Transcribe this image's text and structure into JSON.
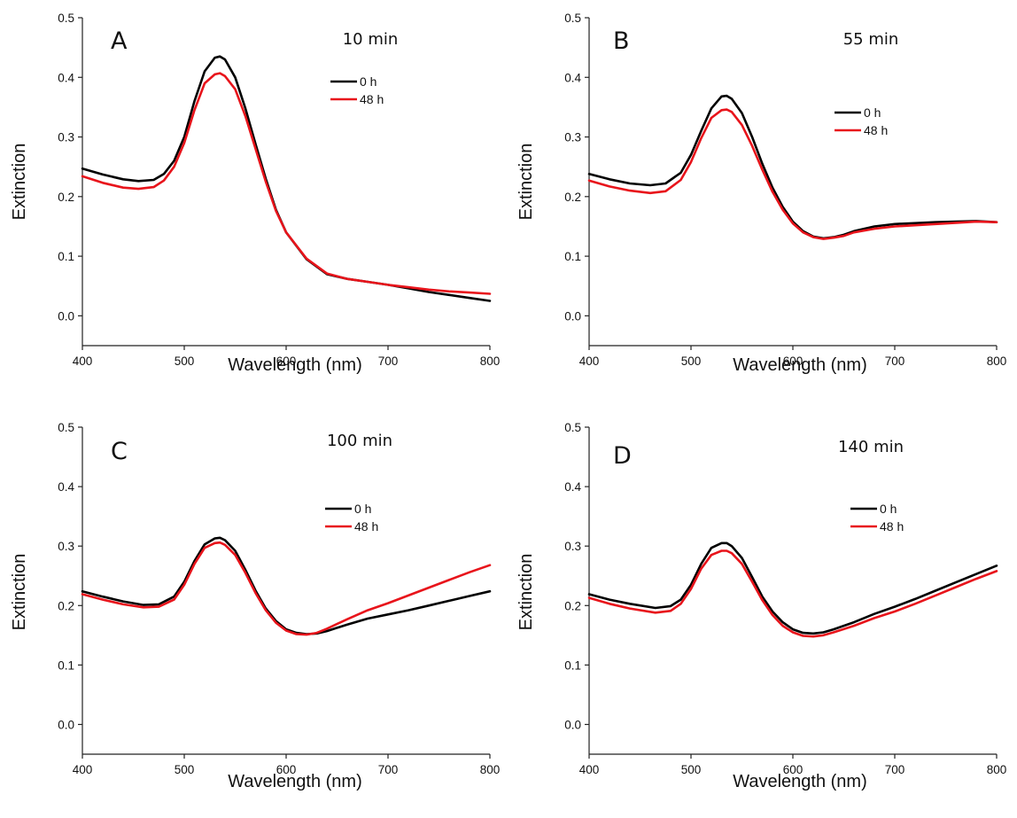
{
  "chart_data": [
    {
      "type": "line",
      "panel": "A",
      "annotation": "10 min",
      "xlabel": "Wavelength (nm)",
      "ylabel": "Extinction",
      "xlim": [
        400,
        800
      ],
      "ylim": [
        -0.05,
        0.5
      ],
      "xticks": [
        "400",
        "500",
        "600",
        "700",
        "800"
      ],
      "yticks": [
        "0.0",
        "0.1",
        "0.2",
        "0.3",
        "0.4",
        "0.5"
      ],
      "legend_position": "upper-right",
      "colors": {
        "0 h": "#000000",
        "48 h": "#e8141b"
      },
      "series": [
        {
          "name": "0 h",
          "x": [
            400,
            420,
            440,
            455,
            470,
            480,
            490,
            500,
            510,
            520,
            530,
            535,
            540,
            550,
            560,
            570,
            580,
            590,
            600,
            620,
            640,
            660,
            680,
            700,
            720,
            740,
            760,
            780,
            800
          ],
          "values": [
            0.247,
            0.237,
            0.229,
            0.226,
            0.228,
            0.238,
            0.26,
            0.3,
            0.36,
            0.41,
            0.433,
            0.435,
            0.43,
            0.4,
            0.348,
            0.288,
            0.23,
            0.178,
            0.14,
            0.095,
            0.07,
            0.062,
            0.057,
            0.052,
            0.046,
            0.04,
            0.035,
            0.03,
            0.025
          ]
        },
        {
          "name": "48 h",
          "x": [
            400,
            420,
            440,
            455,
            470,
            480,
            490,
            500,
            510,
            520,
            530,
            535,
            540,
            550,
            560,
            570,
            580,
            590,
            600,
            620,
            640,
            660,
            680,
            700,
            720,
            740,
            760,
            780,
            800
          ],
          "values": [
            0.234,
            0.223,
            0.215,
            0.213,
            0.216,
            0.227,
            0.25,
            0.29,
            0.345,
            0.39,
            0.405,
            0.407,
            0.402,
            0.38,
            0.335,
            0.28,
            0.225,
            0.176,
            0.14,
            0.096,
            0.071,
            0.062,
            0.057,
            0.052,
            0.048,
            0.044,
            0.041,
            0.039,
            0.037
          ]
        }
      ]
    },
    {
      "type": "line",
      "panel": "B",
      "annotation": "55 min",
      "xlabel": "Wavelength (nm)",
      "ylabel": "Extinction",
      "xlim": [
        400,
        800
      ],
      "ylim": [
        -0.05,
        0.5
      ],
      "xticks": [
        "400",
        "500",
        "600",
        "700",
        "800"
      ],
      "yticks": [
        "0.0",
        "0.1",
        "0.2",
        "0.3",
        "0.4",
        "0.5"
      ],
      "legend_position": "upper-right",
      "colors": {
        "0 h": "#000000",
        "48 h": "#e8141b"
      },
      "series": [
        {
          "name": "0 h",
          "x": [
            400,
            420,
            440,
            460,
            475,
            490,
            500,
            510,
            520,
            530,
            535,
            540,
            550,
            560,
            570,
            580,
            590,
            600,
            610,
            620,
            630,
            640,
            650,
            660,
            680,
            700,
            740,
            780,
            800
          ],
          "values": [
            0.238,
            0.229,
            0.222,
            0.219,
            0.222,
            0.24,
            0.27,
            0.31,
            0.348,
            0.368,
            0.369,
            0.364,
            0.34,
            0.3,
            0.255,
            0.215,
            0.183,
            0.158,
            0.142,
            0.133,
            0.13,
            0.132,
            0.136,
            0.142,
            0.15,
            0.154,
            0.157,
            0.159,
            0.157
          ]
        },
        {
          "name": "48 h",
          "x": [
            400,
            420,
            440,
            460,
            475,
            490,
            500,
            510,
            520,
            530,
            535,
            540,
            550,
            560,
            570,
            580,
            590,
            600,
            610,
            620,
            630,
            640,
            650,
            660,
            680,
            700,
            740,
            780,
            800
          ],
          "values": [
            0.227,
            0.217,
            0.21,
            0.206,
            0.209,
            0.228,
            0.258,
            0.298,
            0.332,
            0.345,
            0.346,
            0.342,
            0.32,
            0.285,
            0.245,
            0.208,
            0.178,
            0.155,
            0.14,
            0.132,
            0.129,
            0.131,
            0.134,
            0.14,
            0.146,
            0.15,
            0.154,
            0.158,
            0.157
          ]
        }
      ]
    },
    {
      "type": "line",
      "panel": "C",
      "annotation": "100 min",
      "xlabel": "Wavelength (nm)",
      "ylabel": "Extinction",
      "xlim": [
        400,
        800
      ],
      "ylim": [
        -0.05,
        0.5
      ],
      "xticks": [
        "400",
        "500",
        "600",
        "700",
        "800"
      ],
      "yticks": [
        "0.0",
        "0.1",
        "0.2",
        "0.3",
        "0.4",
        "0.5"
      ],
      "legend_position": "upper-right",
      "colors": {
        "0 h": "#000000",
        "48 h": "#e8141b"
      },
      "series": [
        {
          "name": "0 h",
          "x": [
            400,
            420,
            440,
            460,
            475,
            490,
            500,
            510,
            520,
            530,
            535,
            540,
            550,
            560,
            570,
            580,
            590,
            600,
            610,
            620,
            630,
            640,
            660,
            680,
            700,
            720,
            740,
            760,
            780,
            800
          ],
          "values": [
            0.224,
            0.215,
            0.207,
            0.201,
            0.202,
            0.215,
            0.24,
            0.275,
            0.303,
            0.313,
            0.314,
            0.31,
            0.292,
            0.26,
            0.225,
            0.195,
            0.174,
            0.16,
            0.154,
            0.152,
            0.153,
            0.157,
            0.168,
            0.178,
            0.185,
            0.192,
            0.2,
            0.208,
            0.216,
            0.224
          ]
        },
        {
          "name": "48 h",
          "x": [
            400,
            420,
            440,
            460,
            475,
            490,
            500,
            510,
            520,
            530,
            535,
            540,
            550,
            560,
            570,
            580,
            590,
            600,
            610,
            620,
            630,
            640,
            660,
            680,
            700,
            720,
            740,
            760,
            780,
            800
          ],
          "values": [
            0.219,
            0.21,
            0.202,
            0.197,
            0.198,
            0.21,
            0.235,
            0.27,
            0.297,
            0.305,
            0.306,
            0.302,
            0.285,
            0.255,
            0.221,
            0.192,
            0.171,
            0.158,
            0.152,
            0.151,
            0.154,
            0.161,
            0.177,
            0.192,
            0.204,
            0.217,
            0.23,
            0.243,
            0.256,
            0.268
          ]
        }
      ]
    },
    {
      "type": "line",
      "panel": "D",
      "annotation": "140 min",
      "xlabel": "Wavelength (nm)",
      "ylabel": "Extinction",
      "xlim": [
        400,
        800
      ],
      "ylim": [
        -0.05,
        0.5
      ],
      "xticks": [
        "400",
        "500",
        "600",
        "700",
        "800"
      ],
      "yticks": [
        "0.0",
        "0.1",
        "0.2",
        "0.3",
        "0.4",
        "0.5"
      ],
      "legend_position": "upper-right",
      "colors": {
        "0 h": "#000000",
        "48 h": "#e8141b"
      },
      "series": [
        {
          "name": "0 h",
          "x": [
            400,
            420,
            440,
            465,
            480,
            490,
            500,
            510,
            520,
            530,
            535,
            540,
            550,
            560,
            570,
            580,
            590,
            600,
            610,
            620,
            630,
            640,
            660,
            680,
            700,
            720,
            740,
            760,
            780,
            800
          ],
          "values": [
            0.219,
            0.21,
            0.203,
            0.196,
            0.199,
            0.21,
            0.235,
            0.27,
            0.297,
            0.305,
            0.305,
            0.3,
            0.28,
            0.248,
            0.215,
            0.19,
            0.172,
            0.16,
            0.154,
            0.153,
            0.155,
            0.16,
            0.172,
            0.186,
            0.198,
            0.211,
            0.225,
            0.239,
            0.253,
            0.267
          ]
        },
        {
          "name": "48 h",
          "x": [
            400,
            420,
            440,
            465,
            480,
            490,
            500,
            510,
            520,
            530,
            535,
            540,
            550,
            560,
            570,
            580,
            590,
            600,
            610,
            620,
            630,
            640,
            660,
            680,
            700,
            720,
            740,
            760,
            780,
            800
          ],
          "values": [
            0.213,
            0.203,
            0.195,
            0.188,
            0.191,
            0.203,
            0.228,
            0.262,
            0.285,
            0.292,
            0.292,
            0.288,
            0.27,
            0.24,
            0.209,
            0.184,
            0.166,
            0.155,
            0.149,
            0.148,
            0.15,
            0.155,
            0.166,
            0.179,
            0.19,
            0.203,
            0.217,
            0.231,
            0.245,
            0.258
          ]
        }
      ]
    }
  ]
}
